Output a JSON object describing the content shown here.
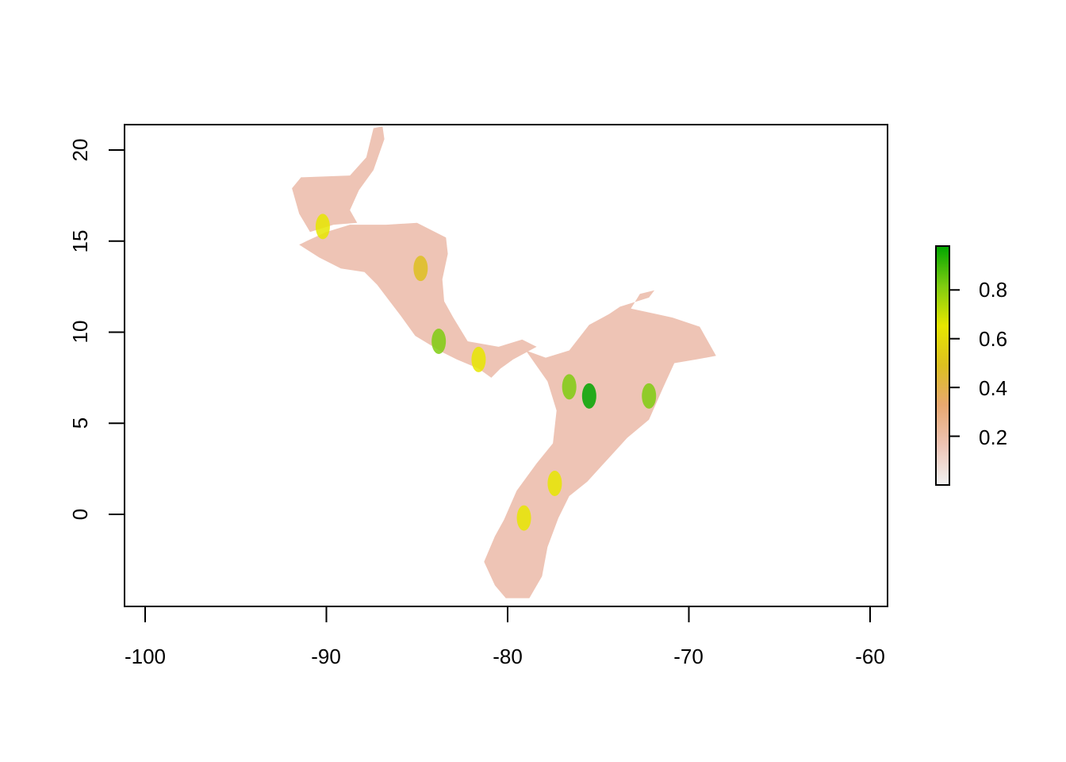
{
  "chart_data": {
    "type": "heatmap",
    "title": "",
    "xlabel": "",
    "ylabel": "",
    "xlim": [
      -100.6,
      -58.9
    ],
    "ylim": [
      -4.6,
      21.4
    ],
    "x_ticks": [
      -100,
      -90,
      -80,
      -70,
      -60
    ],
    "x_tick_labels": [
      "-100",
      "-90",
      "-80",
      "-70",
      "-60"
    ],
    "y_ticks": [
      0,
      5,
      10,
      15,
      20
    ],
    "y_tick_labels": [
      "0",
      "5",
      "10",
      "15",
      "20"
    ],
    "legend": {
      "placement": "right",
      "range": [
        0,
        0.98
      ],
      "ticks": [
        0.2,
        0.4,
        0.6,
        0.8
      ],
      "tick_labels": [
        "0.2",
        "0.4",
        "0.6",
        "0.8"
      ],
      "colors": [
        "#f2f2f2",
        "#eec4b5",
        "#e8a870",
        "#ddc020",
        "#e6e600",
        "#7fcc10",
        "#00a600"
      ]
    },
    "regions": [
      {
        "name": "mexico-yucatan",
        "value": 0.2,
        "outline": [
          [
            -91.4,
            18.5
          ],
          [
            -88.7,
            18.6
          ],
          [
            -87.8,
            19.6
          ],
          [
            -87.4,
            21.2
          ],
          [
            -86.9,
            21.3
          ],
          [
            -86.8,
            20.6
          ],
          [
            -87.4,
            18.9
          ],
          [
            -88.2,
            17.8
          ],
          [
            -88.7,
            16.7
          ],
          [
            -88.3,
            16.0
          ],
          [
            -89.6,
            15.9
          ],
          [
            -90.9,
            15.5
          ],
          [
            -91.5,
            16.5
          ],
          [
            -91.9,
            17.9
          ]
        ]
      },
      {
        "name": "central-america",
        "value": 0.24,
        "outline": [
          [
            -91.1,
            15.0
          ],
          [
            -90.0,
            15.5
          ],
          [
            -88.7,
            15.9
          ],
          [
            -86.7,
            15.9
          ],
          [
            -85.0,
            16.0
          ],
          [
            -83.4,
            15.2
          ],
          [
            -83.3,
            14.3
          ],
          [
            -83.6,
            12.9
          ],
          [
            -83.5,
            11.7
          ],
          [
            -83.0,
            10.8
          ],
          [
            -82.2,
            9.5
          ],
          [
            -80.5,
            9.2
          ],
          [
            -79.2,
            9.6
          ],
          [
            -78.4,
            9.2
          ],
          [
            -79.7,
            8.5
          ],
          [
            -80.4,
            8.0
          ],
          [
            -80.9,
            7.5
          ],
          [
            -81.6,
            8.0
          ],
          [
            -82.8,
            8.5
          ],
          [
            -83.6,
            8.9
          ],
          [
            -85.1,
            9.8
          ],
          [
            -85.9,
            10.9
          ],
          [
            -87.2,
            12.6
          ],
          [
            -87.9,
            13.3
          ],
          [
            -89.2,
            13.5
          ],
          [
            -90.4,
            14.1
          ],
          [
            -91.5,
            14.8
          ]
        ]
      },
      {
        "name": "colombia-north",
        "value": 0.14,
        "outline": [
          [
            -79.0,
            9.0
          ],
          [
            -77.9,
            8.6
          ],
          [
            -76.6,
            9.0
          ],
          [
            -75.5,
            10.4
          ],
          [
            -74.4,
            11.0
          ],
          [
            -73.8,
            11.4
          ],
          [
            -72.2,
            11.9
          ],
          [
            -71.9,
            12.3
          ],
          [
            -72.7,
            12.1
          ],
          [
            -73.2,
            11.3
          ],
          [
            -71.8,
            11.0
          ],
          [
            -70.9,
            10.8
          ],
          [
            -69.4,
            10.3
          ],
          [
            -68.5,
            8.7
          ],
          [
            -69.6,
            8.5
          ],
          [
            -70.8,
            8.3
          ],
          [
            -71.4,
            7.0
          ],
          [
            -72.2,
            5.2
          ],
          [
            -73.4,
            4.2
          ],
          [
            -74.5,
            3.0
          ],
          [
            -75.6,
            1.8
          ],
          [
            -76.6,
            1.0
          ],
          [
            -77.2,
            -0.2
          ],
          [
            -77.8,
            -1.8
          ],
          [
            -78.1,
            -3.4
          ],
          [
            -78.8,
            -4.6
          ],
          [
            -80.1,
            -4.6
          ],
          [
            -80.7,
            -3.9
          ],
          [
            -81.3,
            -2.6
          ],
          [
            -80.7,
            -1.2
          ],
          [
            -80.2,
            -0.3
          ],
          [
            -79.5,
            1.3
          ],
          [
            -78.4,
            2.8
          ],
          [
            -77.5,
            3.9
          ],
          [
            -77.3,
            5.7
          ],
          [
            -77.8,
            7.3
          ]
        ]
      }
    ],
    "hotspots": [
      {
        "name": "guatemala-highlands",
        "lon": -90.2,
        "lat": 15.8,
        "value": 0.62
      },
      {
        "name": "honduras-highlands",
        "lon": -84.8,
        "lat": 13.5,
        "value": 0.45
      },
      {
        "name": "costa-rica-cordillera",
        "lon": -83.8,
        "lat": 9.5,
        "value": 0.82
      },
      {
        "name": "panama-west",
        "lon": -81.6,
        "lat": 8.5,
        "value": 0.6
      },
      {
        "name": "colombia-western-cordillera",
        "lon": -76.6,
        "lat": 7.0,
        "value": 0.85
      },
      {
        "name": "colombia-central-cordillera",
        "lon": -75.5,
        "lat": 6.5,
        "value": 0.9
      },
      {
        "name": "colombia-eastern-cordillera",
        "lon": -72.2,
        "lat": 6.5,
        "value": 0.88
      },
      {
        "name": "colombia-south-andes",
        "lon": -77.4,
        "lat": 1.7,
        "value": 0.72
      },
      {
        "name": "ecuador-andes",
        "lon": -79.1,
        "lat": -0.2,
        "value": 0.7
      }
    ]
  }
}
